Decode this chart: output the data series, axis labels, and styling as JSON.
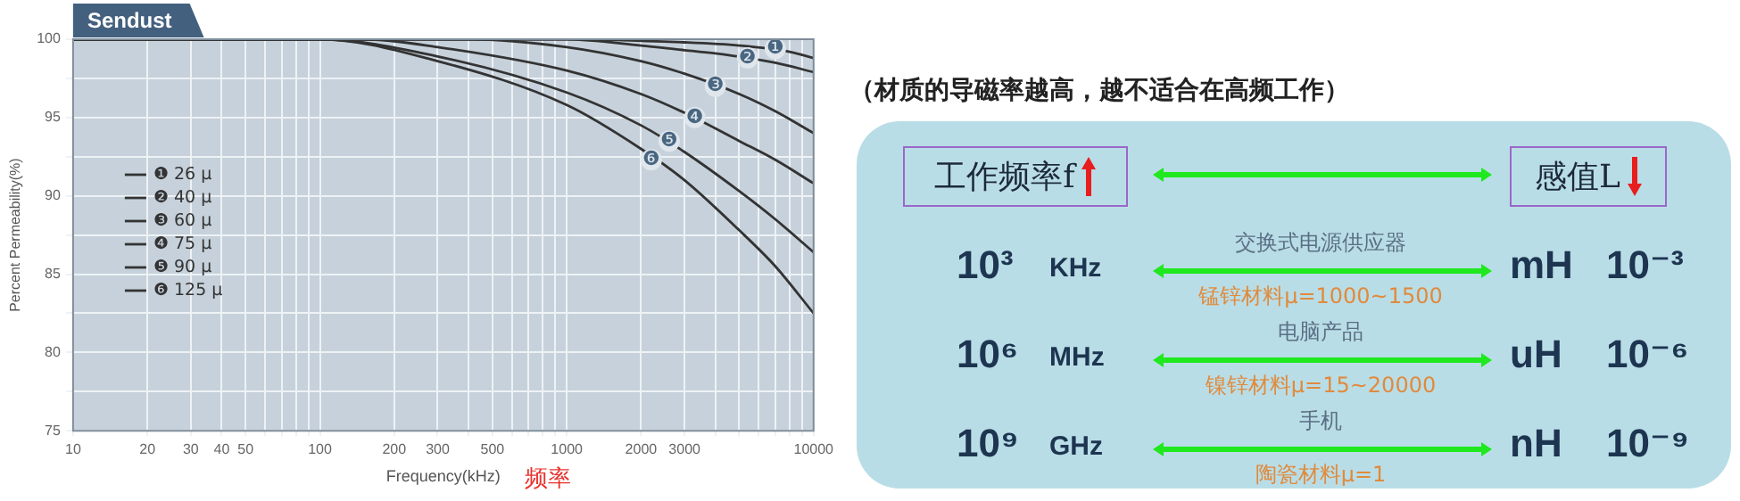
{
  "chart_data": [
    {
      "type": "line",
      "title": "Sendust",
      "xlabel": "Frequency(kHz)",
      "ylabel": "Percent Permeability(%)",
      "log": "x",
      "xlim": [
        10,
        10000
      ],
      "ylim": [
        75,
        100
      ],
      "xticks": [
        10,
        20,
        30,
        40,
        50,
        {
          "value": 60,
          "label": null
        },
        {
          "value": 70,
          "label": null
        },
        {
          "value": 80,
          "label": null
        },
        {
          "value": 90,
          "label": null
        },
        100,
        200,
        300,
        {
          "value": 400,
          "label": null
        },
        500,
        {
          "value": 600,
          "label": null
        },
        {
          "value": 700,
          "label": null
        },
        {
          "value": 800,
          "label": null
        },
        {
          "value": 900,
          "label": null
        },
        1000,
        2000,
        3000,
        {
          "value": 4000,
          "label": null
        },
        {
          "value": 5000,
          "label": null
        },
        {
          "value": 6000,
          "label": null
        },
        {
          "value": 7000,
          "label": null
        },
        {
          "value": 8000,
          "label": null
        },
        {
          "value": 9000,
          "label": null
        },
        10000
      ],
      "yticks": [
        75,
        {
          "value": 77.5,
          "label": null
        },
        80,
        {
          "value": 82.5,
          "label": null
        },
        85,
        {
          "value": 87.5,
          "label": null
        },
        90,
        {
          "value": 92.5,
          "label": null
        },
        95,
        {
          "value": 97.5,
          "label": null
        },
        100
      ],
      "grid": true,
      "legend": "left",
      "marker": "none",
      "line_style": "solid",
      "series": [
        {
          "name": "❶ 26 μ",
          "color": "#333333",
          "x": [
            10,
            1000,
            3000,
            5000,
            8000,
            10000
          ],
          "values": [
            100,
            100,
            99.8,
            99.6,
            99.2,
            98.8
          ]
        },
        {
          "name": "❷ 40 μ",
          "color": "#333333",
          "x": [
            10,
            1000,
            2000,
            3000,
            4000,
            7000,
            10000
          ],
          "values": [
            100,
            100,
            99.6,
            99.3,
            99.1,
            98.5,
            97.9
          ]
        },
        {
          "name": "❸ 60 μ",
          "color": "#333333",
          "x": [
            10,
            400,
            1000,
            2000,
            3000,
            5000,
            7000,
            10000
          ],
          "values": [
            100,
            100,
            99.5,
            98.6,
            97.8,
            96.5,
            95.4,
            94.0
          ]
        },
        {
          "name": "❹ 75 μ",
          "color": "#333333",
          "x": [
            10,
            150,
            300,
            1000,
            2000,
            3000,
            5000,
            7000,
            10000
          ],
          "values": [
            100,
            100,
            99.5,
            98.0,
            96.5,
            95.3,
            93.5,
            92.3,
            90.8
          ]
        },
        {
          "name": "❺ 90 μ",
          "color": "#333333",
          "x": [
            10,
            100,
            300,
            1000,
            2000,
            3000,
            5000,
            7000,
            10000
          ],
          "values": [
            100,
            100,
            98.9,
            96.6,
            94.5,
            92.8,
            90.3,
            88.5,
            86.4
          ]
        },
        {
          "name": "❻ 125 μ",
          "color": "#333333",
          "x": [
            10,
            100,
            300,
            1000,
            2000,
            3000,
            5000,
            7000,
            10000
          ],
          "values": [
            100,
            100,
            98.6,
            95.8,
            93.0,
            91.0,
            87.8,
            85.5,
            82.5
          ]
        }
      ],
      "annotations": [
        {
          "text": "❶",
          "x": 7000,
          "y": 99.4
        },
        {
          "text": "❷",
          "x": 5400,
          "y": 98.8
        },
        {
          "text": "❸",
          "x": 4000,
          "y": 97.0
        },
        {
          "text": "❹",
          "x": 3300,
          "y": 95.0
        },
        {
          "text": "❺",
          "x": 2600,
          "y": 93.5
        },
        {
          "text": "❻",
          "x": 2200,
          "y": 92.3
        },
        "频率"
      ]
    },
    {
      "type": "other",
      "title": "（材质的导磁率越高，越不适合在高频工作）",
      "annotations": [
        "工作频率f",
        "感值L",
        "10³",
        "KHz",
        "交换式电源供应器",
        "锰锌材料μ=1000~1500",
        "mH",
        "10⁻³",
        "10⁶",
        "MHz",
        "电脑产品",
        "镍锌材料μ=15~20000",
        "uH",
        "10⁻⁶",
        "10⁹",
        "GHz",
        "手机",
        "陶瓷材料μ=1",
        "nH",
        "10⁻⁹"
      ]
    }
  ]
}
